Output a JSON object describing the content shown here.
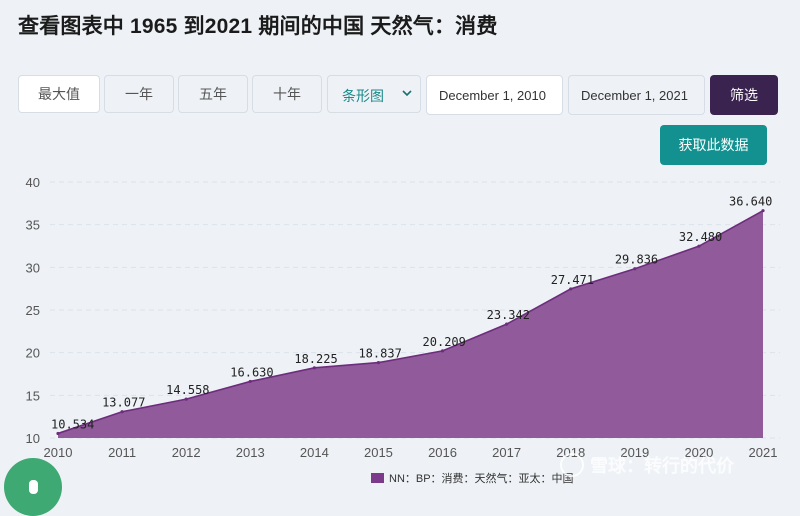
{
  "title": "查看图表中 1965 到2021 期间的中国 天然气：消费",
  "toolbar": {
    "max_label": "最大值",
    "one_year_label": "一年",
    "five_year_label": "五年",
    "ten_year_label": "十年",
    "chart_type_value": "条形图",
    "start_date": "December 1, 2010",
    "end_date": "December 1, 2021",
    "filter_label": "筛选",
    "get_data_label": "获取此数据"
  },
  "watermark": "雪球：转行的代价",
  "colors": {
    "area_fill": "#905a9b",
    "area_line": "#6d2d7c",
    "legend_swatch": "#7b3a8a",
    "filter_button": "#3b2350",
    "get_data_button": "#139191"
  },
  "chart_data": {
    "type": "area",
    "categories": [
      "2010",
      "2011",
      "2012",
      "2013",
      "2014",
      "2015",
      "2016",
      "2017",
      "2018",
      "2019",
      "2020",
      "2021"
    ],
    "series": [
      {
        "name": "NN：BP：消费：天然气：亚太：中国",
        "values": [
          10.534,
          13.077,
          14.558,
          16.63,
          18.225,
          18.837,
          20.209,
          23.342,
          27.471,
          29.836,
          32.48,
          36.64
        ]
      }
    ],
    "data_labels": [
      "10.534",
      "13.077",
      "14.558",
      "16.630",
      "18.225",
      "18.837",
      "20.209",
      "23.342",
      "27.471",
      "29.836",
      "32.480",
      "36.640"
    ],
    "yticks": [
      "10",
      "15",
      "20",
      "25",
      "30",
      "35",
      "40"
    ],
    "ylim": [
      10,
      40
    ],
    "grid": true,
    "legend": "bottom-center"
  }
}
